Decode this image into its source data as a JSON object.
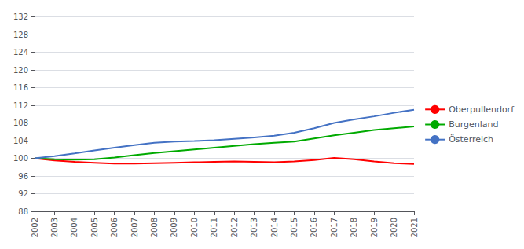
{
  "chart_data": {
    "type": "line",
    "x": [
      2002,
      2003,
      2004,
      2005,
      2006,
      2007,
      2008,
      2009,
      2010,
      2011,
      2012,
      2013,
      2014,
      2015,
      2016,
      2017,
      2018,
      2019,
      2020,
      2021
    ],
    "xlim": [
      2002,
      2021
    ],
    "xticks": [
      2002,
      2003,
      2004,
      2005,
      2006,
      2007,
      2008,
      2009,
      2010,
      2011,
      2012,
      2013,
      2014,
      2015,
      2016,
      2017,
      2018,
      2019,
      2020,
      2021
    ],
    "ylim": [
      88,
      133
    ],
    "yticks": [
      88,
      92,
      96,
      100,
      104,
      108,
      112,
      116,
      120,
      124,
      128,
      132
    ],
    "grid": true,
    "legend": "right",
    "series": [
      {
        "name": "Oberpullendorf",
        "color": "#ff0000",
        "values": [
          100.0,
          99.5,
          99.2,
          99.0,
          98.8,
          98.8,
          98.9,
          99.0,
          99.1,
          99.2,
          99.3,
          99.2,
          99.1,
          99.3,
          99.6,
          100.1,
          99.8,
          99.3,
          98.9,
          98.7
        ]
      },
      {
        "name": "Burgenland",
        "color": "#00aa00",
        "values": [
          100.0,
          99.8,
          99.7,
          99.8,
          100.2,
          100.7,
          101.2,
          101.6,
          102.0,
          102.4,
          102.8,
          103.2,
          103.5,
          103.8,
          104.5,
          105.2,
          105.8,
          106.4,
          106.8,
          107.2
        ]
      },
      {
        "name": "Österreich",
        "color": "#4472c4",
        "values": [
          100.0,
          100.5,
          101.1,
          101.8,
          102.4,
          103.0,
          103.5,
          103.8,
          103.9,
          104.1,
          104.4,
          104.7,
          105.1,
          105.8,
          106.8,
          108.0,
          108.8,
          109.5,
          110.3,
          111.0
        ]
      }
    ]
  }
}
